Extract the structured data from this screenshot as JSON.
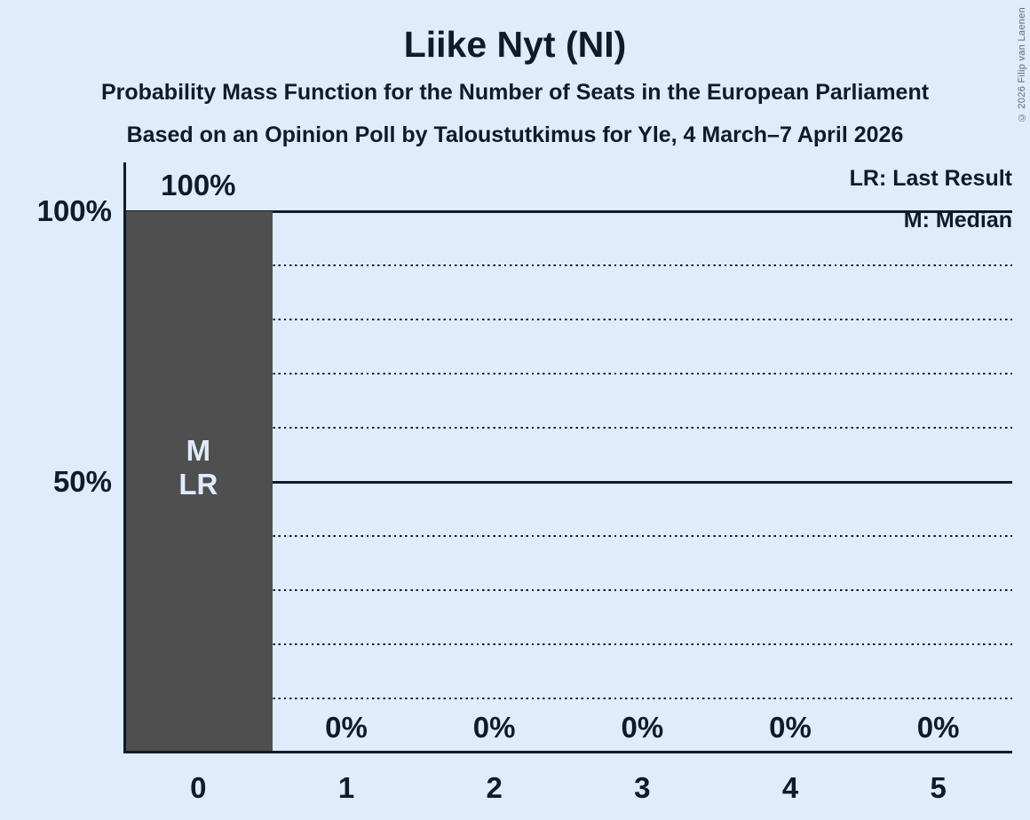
{
  "header": {
    "title": "Liike Nyt (NI)",
    "subtitle1": "Probability Mass Function for the Number of Seats in the European Parliament",
    "subtitle2": "Based on an Opinion Poll by Taloustutkimus for Yle, 4 March–7 April 2026"
  },
  "legend": {
    "last_result": "LR: Last Result",
    "median": "M: Median"
  },
  "copyright": "© 2026 Filip van Laenen",
  "colors": {
    "background": "#e0ebfc",
    "ink": "#0d1b2c",
    "bar": "#4f4f4f",
    "bar_label": "#e0ebfc"
  },
  "chart_data": {
    "type": "bar",
    "title": "Liike Nyt (NI)",
    "categories": [
      "0",
      "1",
      "2",
      "3",
      "4",
      "5"
    ],
    "values": [
      100,
      0,
      0,
      0,
      0,
      0
    ],
    "bar_value_labels": [
      "100%",
      "0%",
      "0%",
      "0%",
      "0%",
      "0%"
    ],
    "ylim": [
      0,
      100
    ],
    "y_axis_ticks": [
      {
        "value": 100,
        "label": "100%"
      },
      {
        "value": 50,
        "label": "50%"
      }
    ],
    "gridlines_solid": [
      100,
      50
    ],
    "gridlines_dotted": [
      90,
      80,
      70,
      60,
      40,
      30,
      20,
      10
    ],
    "bar_annotations": [
      {
        "category": "0",
        "lines": [
          "M",
          "LR"
        ]
      }
    ],
    "legend_position": "top-right",
    "grid": "dotted-horizontal"
  }
}
